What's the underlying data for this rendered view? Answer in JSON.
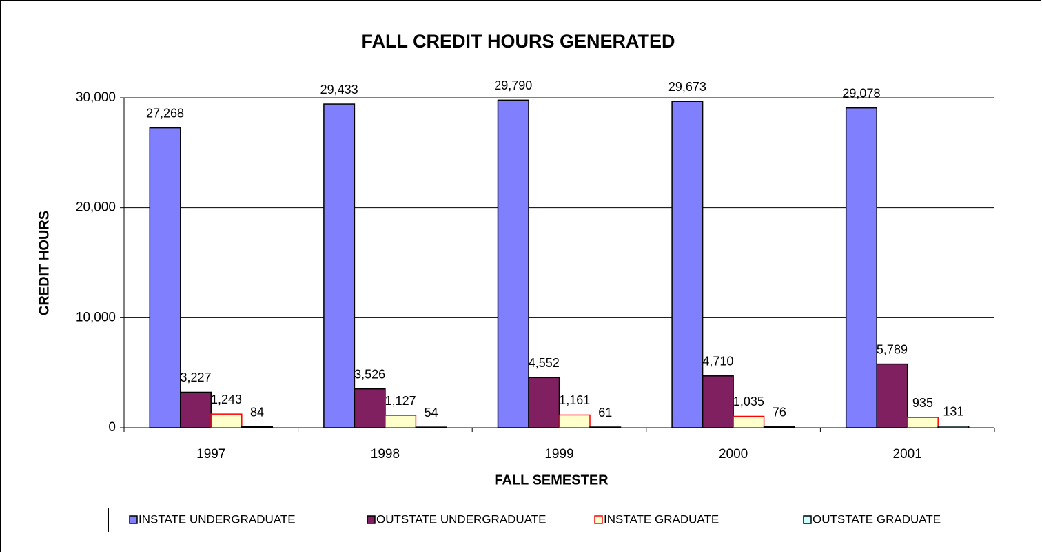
{
  "chart_data": {
    "type": "bar",
    "title": "FALL CREDIT HOURS GENERATED",
    "xlabel": "FALL SEMESTER",
    "ylabel": "CREDIT HOURS",
    "categories": [
      "1997",
      "1998",
      "1999",
      "2000",
      "2001"
    ],
    "series": [
      {
        "name": "INSTATE UNDERGRADUATE",
        "color": "#8080ff",
        "edgecolor": "#000000",
        "values": [
          27268,
          29433,
          29790,
          29673,
          29078
        ],
        "value_labels": [
          "27,268",
          "29,433",
          "29,790",
          "29,673",
          "29,078"
        ]
      },
      {
        "name": "OUTSTATE UNDERGRADUATE",
        "color": "#802060",
        "edgecolor": "#000000",
        "values": [
          3227,
          3526,
          4552,
          4710,
          5789
        ],
        "value_labels": [
          "3,227",
          "3,526",
          "4,552",
          "4,710",
          "5,789"
        ]
      },
      {
        "name": "INSTATE GRADUATE",
        "color": "#ffffcc",
        "edgecolor": "#ff0000",
        "values": [
          1243,
          1127,
          1161,
          1035,
          935
        ],
        "value_labels": [
          "1,243",
          "1,127",
          "1,161",
          "1,035",
          "935"
        ]
      },
      {
        "name": "OUTSTATE GRADUATE",
        "color": "#ccffff",
        "edgecolor": "#000000",
        "values": [
          84,
          54,
          61,
          76,
          131
        ]
      }
    ],
    "ylim": [
      0,
      30000
    ],
    "yticks": [
      0,
      {
        "value": 10000,
        "label": "10,000"
      },
      {
        "value": 20000,
        "label": "20,000"
      },
      {
        "value": 30000,
        "label": "30,000"
      }
    ],
    "grid": true,
    "legend": "bottom"
  }
}
